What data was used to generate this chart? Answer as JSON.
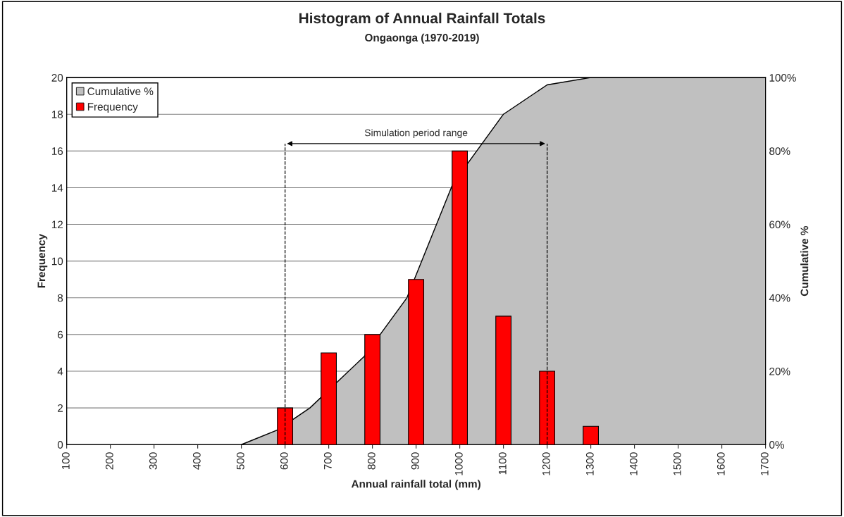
{
  "chart_data": {
    "type": "bar",
    "title": "Histogram of Annual Rainfall Totals",
    "subtitle": "Ongaonga (1970-2019)",
    "xlabel": "Annual rainfall total (mm)",
    "ylabel": "Frequency",
    "y2label": "Cumulative %",
    "series": [
      {
        "name": "Cumulative %",
        "type": "area",
        "axis": "y2",
        "color": "#c0c0c0",
        "x": [
          500,
          583,
          657,
          781,
          879,
          984,
          1100,
          1200,
          1300,
          1700
        ],
        "values": [
          0,
          4,
          10,
          24,
          40,
          71,
          90,
          98,
          100,
          100
        ]
      },
      {
        "name": "Frequency",
        "color": "#ff0000",
        "x": [
          600,
          700,
          800,
          900,
          1000,
          1100,
          1200,
          1300
        ],
        "values": [
          2,
          5,
          6,
          9,
          16,
          7,
          4,
          1
        ]
      }
    ],
    "xlim": [
      100,
      1700
    ],
    "xticks": [
      100,
      200,
      300,
      400,
      500,
      600,
      700,
      800,
      900,
      1000,
      1100,
      1200,
      1300,
      1400,
      1500,
      1600,
      1700
    ],
    "ylim": [
      0,
      20
    ],
    "yticks": [
      0,
      2,
      4,
      6,
      8,
      10,
      12,
      14,
      16,
      18,
      20
    ],
    "y2lim": [
      0,
      100
    ],
    "y2ticks": [
      {
        "value": 0,
        "label": "0%"
      },
      {
        "value": 20,
        "label": "20%"
      },
      {
        "value": 40,
        "label": "40%"
      },
      {
        "value": 60,
        "label": "60%"
      },
      {
        "value": 80,
        "label": "80%"
      },
      {
        "value": 100,
        "label": "100%"
      }
    ],
    "ref_lines": [
      {
        "axis": "x",
        "value": 600,
        "line_style": "dashed"
      },
      {
        "axis": "x",
        "value": 1200,
        "line_style": "dashed"
      }
    ],
    "annotations": [
      "Simulation period range"
    ],
    "grid": "y",
    "legend": "top left"
  }
}
